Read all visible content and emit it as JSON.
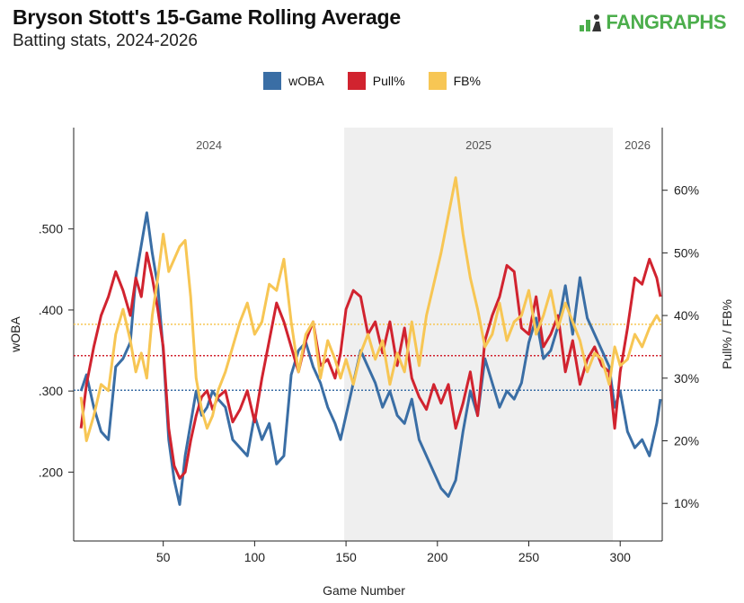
{
  "header": {
    "title": "Bryson Stott's 15-Game Rolling Average",
    "subtitle": "Batting stats, 2024-2026",
    "logo_text": "FANGRAPHS"
  },
  "colors": {
    "woba": "#3a6ea5",
    "pull": "#d1232f",
    "fb": "#f7c654",
    "shade": "#efefef",
    "logo": "#4cae4c"
  },
  "chart_data": {
    "type": "line",
    "xlabel": "Game Number",
    "ylabel_left": "wOBA",
    "ylabel_right": "Pull% / FB%",
    "xlim": [
      1,
      323
    ],
    "ylim_left": [
      0.115,
      0.625
    ],
    "ylim_right": [
      0.04,
      0.7
    ],
    "x_ticks": [
      50,
      100,
      150,
      200,
      250,
      300
    ],
    "left_ticks": [
      0.2,
      0.3,
      0.4,
      0.5
    ],
    "left_tick_labels": [
      ".200",
      ".300",
      ".400",
      ".500"
    ],
    "right_ticks": [
      0.1,
      0.2,
      0.3,
      0.4,
      0.5,
      0.6
    ],
    "right_tick_labels": [
      "10%",
      "20%",
      "30%",
      "40%",
      "50%",
      "60%"
    ],
    "legend_position": "top-center",
    "seasons": [
      {
        "label": "2024",
        "start": 1,
        "end": 149,
        "shaded": false
      },
      {
        "label": "2025",
        "start": 149,
        "end": 296,
        "shaded": true
      },
      {
        "label": "2026",
        "start": 296,
        "end": 323,
        "shaded": false
      }
    ],
    "reference_lines": [
      {
        "series": "wOBA",
        "axis": "left",
        "value": 0.301
      },
      {
        "series": "Pull%",
        "axis": "right",
        "value": 0.336
      },
      {
        "series": "FB%",
        "axis": "right",
        "value": 0.386
      }
    ],
    "series": [
      {
        "name": "wOBA",
        "axis": "left",
        "x": [
          5,
          8,
          12,
          16,
          20,
          24,
          28,
          32,
          35,
          38,
          41,
          44,
          47,
          50,
          53,
          56,
          59,
          62,
          65,
          68,
          71,
          74,
          77,
          80,
          84,
          88,
          92,
          96,
          100,
          104,
          108,
          112,
          116,
          120,
          124,
          128,
          132,
          136,
          140,
          144,
          147,
          150,
          154,
          158,
          162,
          166,
          170,
          174,
          178,
          182,
          186,
          190,
          194,
          198,
          202,
          206,
          210,
          214,
          218,
          222,
          226,
          230,
          234,
          238,
          242,
          246,
          250,
          254,
          258,
          262,
          266,
          270,
          274,
          278,
          282,
          286,
          290,
          294,
          297,
          300,
          304,
          308,
          312,
          316,
          320,
          322
        ],
        "y": [
          0.3,
          0.32,
          0.28,
          0.25,
          0.24,
          0.33,
          0.34,
          0.36,
          0.44,
          0.48,
          0.52,
          0.47,
          0.43,
          0.35,
          0.24,
          0.19,
          0.16,
          0.22,
          0.26,
          0.3,
          0.27,
          0.28,
          0.3,
          0.29,
          0.28,
          0.24,
          0.23,
          0.22,
          0.27,
          0.24,
          0.26,
          0.21,
          0.22,
          0.32,
          0.35,
          0.36,
          0.33,
          0.31,
          0.28,
          0.26,
          0.24,
          0.27,
          0.31,
          0.35,
          0.33,
          0.31,
          0.28,
          0.3,
          0.27,
          0.26,
          0.29,
          0.24,
          0.22,
          0.2,
          0.18,
          0.17,
          0.19,
          0.25,
          0.3,
          0.27,
          0.34,
          0.31,
          0.28,
          0.3,
          0.29,
          0.31,
          0.36,
          0.39,
          0.34,
          0.35,
          0.38,
          0.43,
          0.37,
          0.44,
          0.39,
          0.37,
          0.35,
          0.33,
          0.28,
          0.3,
          0.25,
          0.23,
          0.24,
          0.22,
          0.26,
          0.29
        ]
      },
      {
        "name": "Pull%",
        "axis": "right",
        "x": [
          5,
          8,
          12,
          16,
          20,
          24,
          28,
          32,
          35,
          38,
          41,
          44,
          47,
          50,
          53,
          56,
          59,
          62,
          65,
          68,
          71,
          74,
          77,
          80,
          84,
          88,
          92,
          96,
          100,
          104,
          108,
          112,
          116,
          120,
          124,
          128,
          132,
          136,
          140,
          144,
          147,
          150,
          154,
          158,
          162,
          166,
          170,
          174,
          178,
          182,
          186,
          190,
          194,
          198,
          202,
          206,
          210,
          214,
          218,
          222,
          226,
          230,
          234,
          238,
          242,
          246,
          250,
          254,
          258,
          262,
          266,
          270,
          274,
          278,
          282,
          286,
          290,
          294,
          297,
          300,
          304,
          308,
          312,
          316,
          320,
          322
        ],
        "y": [
          0.22,
          0.29,
          0.35,
          0.4,
          0.43,
          0.47,
          0.44,
          0.4,
          0.46,
          0.43,
          0.5,
          0.46,
          0.41,
          0.35,
          0.22,
          0.16,
          0.14,
          0.15,
          0.2,
          0.24,
          0.27,
          0.28,
          0.25,
          0.27,
          0.28,
          0.23,
          0.25,
          0.28,
          0.23,
          0.3,
          0.36,
          0.42,
          0.39,
          0.35,
          0.31,
          0.36,
          0.39,
          0.32,
          0.33,
          0.3,
          0.34,
          0.41,
          0.44,
          0.43,
          0.37,
          0.39,
          0.34,
          0.39,
          0.32,
          0.38,
          0.3,
          0.27,
          0.25,
          0.29,
          0.26,
          0.29,
          0.22,
          0.26,
          0.31,
          0.24,
          0.36,
          0.4,
          0.43,
          0.48,
          0.47,
          0.38,
          0.37,
          0.43,
          0.35,
          0.37,
          0.4,
          0.31,
          0.36,
          0.29,
          0.33,
          0.35,
          0.32,
          0.31,
          0.22,
          0.31,
          0.38,
          0.46,
          0.45,
          0.49,
          0.46,
          0.43
        ]
      },
      {
        "name": "FB%",
        "axis": "right",
        "x": [
          5,
          8,
          12,
          16,
          20,
          24,
          28,
          32,
          35,
          38,
          41,
          44,
          47,
          50,
          53,
          56,
          59,
          62,
          65,
          68,
          71,
          74,
          77,
          80,
          84,
          88,
          92,
          96,
          100,
          104,
          108,
          112,
          116,
          120,
          124,
          128,
          132,
          136,
          140,
          144,
          147,
          150,
          154,
          158,
          162,
          166,
          170,
          174,
          178,
          182,
          186,
          190,
          194,
          198,
          202,
          206,
          210,
          214,
          218,
          222,
          226,
          230,
          234,
          238,
          242,
          246,
          250,
          254,
          258,
          262,
          266,
          270,
          274,
          278,
          282,
          286,
          290,
          294,
          297,
          300,
          304,
          308,
          312,
          316,
          320,
          322
        ],
        "y": [
          0.27,
          0.2,
          0.24,
          0.29,
          0.28,
          0.37,
          0.41,
          0.36,
          0.31,
          0.34,
          0.3,
          0.4,
          0.46,
          0.53,
          0.47,
          0.49,
          0.51,
          0.52,
          0.43,
          0.3,
          0.25,
          0.22,
          0.24,
          0.28,
          0.31,
          0.35,
          0.39,
          0.42,
          0.37,
          0.39,
          0.45,
          0.44,
          0.49,
          0.39,
          0.31,
          0.37,
          0.39,
          0.3,
          0.36,
          0.33,
          0.3,
          0.33,
          0.29,
          0.34,
          0.37,
          0.33,
          0.36,
          0.29,
          0.34,
          0.31,
          0.39,
          0.32,
          0.4,
          0.45,
          0.5,
          0.56,
          0.62,
          0.53,
          0.46,
          0.41,
          0.35,
          0.37,
          0.42,
          0.36,
          0.39,
          0.4,
          0.44,
          0.37,
          0.4,
          0.44,
          0.38,
          0.42,
          0.39,
          0.36,
          0.31,
          0.34,
          0.33,
          0.29,
          0.35,
          0.32,
          0.33,
          0.37,
          0.35,
          0.38,
          0.4,
          0.39
        ]
      }
    ]
  }
}
